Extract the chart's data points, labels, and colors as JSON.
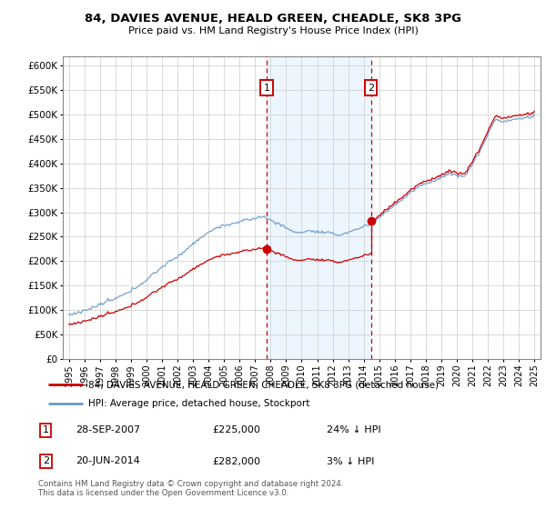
{
  "title": "84, DAVIES AVENUE, HEALD GREEN, CHEADLE, SK8 3PG",
  "subtitle": "Price paid vs. HM Land Registry's House Price Index (HPI)",
  "ylabel_ticks": [
    "£0",
    "£50K",
    "£100K",
    "£150K",
    "£200K",
    "£250K",
    "£300K",
    "£350K",
    "£400K",
    "£450K",
    "£500K",
    "£550K",
    "£600K"
  ],
  "ylim": [
    0,
    620000
  ],
  "ytick_vals": [
    0,
    50000,
    100000,
    150000,
    200000,
    250000,
    300000,
    350000,
    400000,
    450000,
    500000,
    550000,
    600000
  ],
  "xlim_start": 1994.6,
  "xlim_end": 2025.4,
  "xticks": [
    1995,
    1996,
    1997,
    1998,
    1999,
    2000,
    2001,
    2002,
    2003,
    2004,
    2005,
    2006,
    2007,
    2008,
    2009,
    2010,
    2011,
    2012,
    2013,
    2014,
    2015,
    2016,
    2017,
    2018,
    2019,
    2020,
    2021,
    2022,
    2023,
    2024,
    2025
  ],
  "sale1_date": 2007.74,
  "sale1_price": 225000,
  "sale1_label": "1",
  "sale2_date": 2014.47,
  "sale2_price": 282000,
  "sale2_label": "2",
  "legend_line1": "84, DAVIES AVENUE, HEALD GREEN, CHEADLE, SK8 3PG (detached house)",
  "legend_line2": "HPI: Average price, detached house, Stockport",
  "ann1_box": "1",
  "ann1_date": "28-SEP-2007",
  "ann1_price": "£225,000",
  "ann1_hpi": "24% ↓ HPI",
  "ann2_box": "2",
  "ann2_date": "20-JUN-2014",
  "ann2_price": "£282,000",
  "ann2_hpi": "3% ↓ HPI",
  "footer": "Contains HM Land Registry data © Crown copyright and database right 2024.\nThis data is licensed under the Open Government Licence v3.0.",
  "price_line_color": "#cc0000",
  "hpi_line_color": "#6699cc",
  "shaded_color": "#ddeeff",
  "vline_color": "#cc0000"
}
